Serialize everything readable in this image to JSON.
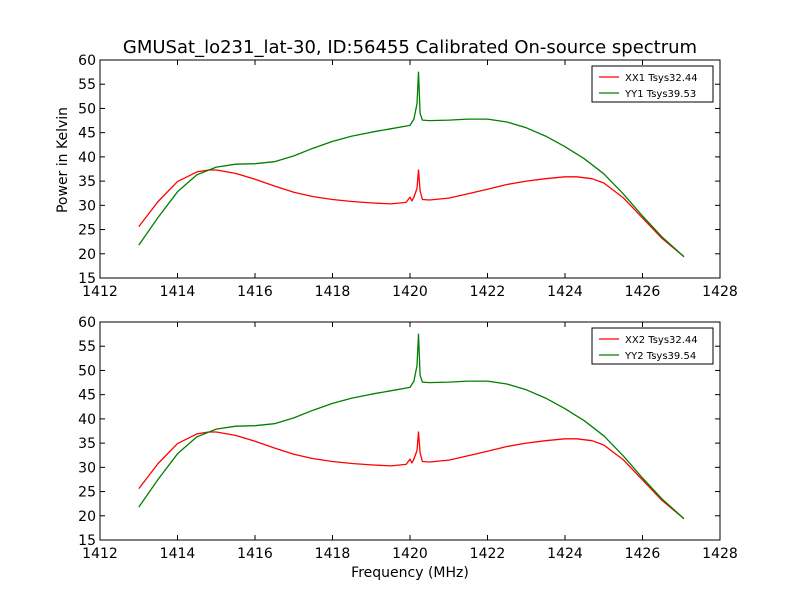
{
  "figure": {
    "title": "GMUSat_lo231_lat-30, ID:56455 Calibrated On-source spectrum",
    "ylabel": "Power in Kelvin",
    "xlabel": "Frequency (MHz)"
  },
  "chart_data": [
    {
      "type": "line",
      "title": "GMUSat_lo231_lat-30, ID:56455 Calibrated On-source spectrum",
      "xlabel": "",
      "ylabel": "Power in Kelvin",
      "xlim": [
        1412,
        1428
      ],
      "ylim": [
        15,
        60
      ],
      "xticks": [
        1412,
        1414,
        1416,
        1418,
        1420,
        1422,
        1424,
        1426,
        1428
      ],
      "yticks": [
        15,
        20,
        25,
        30,
        35,
        40,
        45,
        50,
        55,
        60
      ],
      "grid": false,
      "legend_position": "top-right",
      "series": [
        {
          "name": "XX1 Tsys32.44",
          "color": "#ff0000",
          "x": [
            1413.0,
            1413.5,
            1414.0,
            1414.5,
            1414.8,
            1415.0,
            1415.5,
            1416.0,
            1416.5,
            1417.0,
            1417.5,
            1418.0,
            1418.5,
            1419.0,
            1419.5,
            1419.9,
            1420.0,
            1420.05,
            1420.1,
            1420.18,
            1420.22,
            1420.26,
            1420.32,
            1420.5,
            1421.0,
            1421.5,
            1422.0,
            1422.5,
            1423.0,
            1423.5,
            1424.0,
            1424.3,
            1424.7,
            1425.0,
            1425.5,
            1426.0,
            1426.5,
            1427.07
          ],
          "y": [
            25.6,
            30.8,
            34.9,
            36.9,
            37.3,
            37.3,
            36.6,
            35.4,
            34.0,
            32.7,
            31.8,
            31.2,
            30.8,
            30.5,
            30.3,
            30.6,
            31.7,
            30.9,
            31.7,
            33.5,
            37.3,
            33.0,
            31.2,
            31.1,
            31.5,
            32.4,
            33.3,
            34.3,
            35.0,
            35.5,
            35.9,
            35.9,
            35.5,
            34.6,
            31.6,
            27.4,
            23.2,
            19.4
          ]
        },
        {
          "name": "YY1 Tsys39.53",
          "color": "#008000",
          "x": [
            1413.0,
            1413.5,
            1414.0,
            1414.5,
            1415.0,
            1415.5,
            1416.0,
            1416.5,
            1417.0,
            1417.5,
            1418.0,
            1418.5,
            1419.0,
            1419.5,
            1420.0,
            1420.1,
            1420.18,
            1420.22,
            1420.26,
            1420.32,
            1420.5,
            1421.0,
            1421.5,
            1422.0,
            1422.5,
            1423.0,
            1423.5,
            1424.0,
            1424.5,
            1425.0,
            1425.5,
            1426.0,
            1426.5,
            1427.07
          ],
          "y": [
            21.8,
            27.5,
            32.8,
            36.3,
            37.9,
            38.5,
            38.6,
            39.0,
            40.2,
            41.8,
            43.2,
            44.3,
            45.1,
            45.8,
            46.5,
            47.8,
            51.0,
            57.5,
            49.0,
            47.6,
            47.5,
            47.6,
            47.8,
            47.8,
            47.2,
            46.0,
            44.3,
            42.1,
            39.6,
            36.5,
            32.4,
            27.8,
            23.5,
            19.4
          ]
        }
      ]
    },
    {
      "type": "line",
      "title": "",
      "xlabel": "Frequency (MHz)",
      "ylabel": "",
      "xlim": [
        1412,
        1428
      ],
      "ylim": [
        15,
        60
      ],
      "xticks": [
        1412,
        1414,
        1416,
        1418,
        1420,
        1422,
        1424,
        1426,
        1428
      ],
      "yticks": [
        15,
        20,
        25,
        30,
        35,
        40,
        45,
        50,
        55,
        60
      ],
      "grid": false,
      "legend_position": "top-right",
      "series": [
        {
          "name": "XX2 Tsys32.44",
          "color": "#ff0000",
          "x": [
            1413.0,
            1413.5,
            1414.0,
            1414.5,
            1414.8,
            1415.0,
            1415.5,
            1416.0,
            1416.5,
            1417.0,
            1417.5,
            1418.0,
            1418.5,
            1419.0,
            1419.5,
            1419.9,
            1420.0,
            1420.05,
            1420.1,
            1420.18,
            1420.22,
            1420.26,
            1420.32,
            1420.5,
            1421.0,
            1421.5,
            1422.0,
            1422.5,
            1423.0,
            1423.5,
            1424.0,
            1424.3,
            1424.7,
            1425.0,
            1425.5,
            1426.0,
            1426.5,
            1427.07
          ],
          "y": [
            25.6,
            30.8,
            34.9,
            36.9,
            37.3,
            37.3,
            36.6,
            35.4,
            34.0,
            32.7,
            31.8,
            31.2,
            30.8,
            30.5,
            30.3,
            30.6,
            31.7,
            30.9,
            31.7,
            33.5,
            37.3,
            33.0,
            31.2,
            31.1,
            31.5,
            32.4,
            33.3,
            34.3,
            35.0,
            35.5,
            35.9,
            35.9,
            35.5,
            34.6,
            31.6,
            27.4,
            23.2,
            19.4
          ]
        },
        {
          "name": "YY2 Tsys39.54",
          "color": "#008000",
          "x": [
            1413.0,
            1413.5,
            1414.0,
            1414.5,
            1415.0,
            1415.5,
            1416.0,
            1416.5,
            1417.0,
            1417.5,
            1418.0,
            1418.5,
            1419.0,
            1419.5,
            1420.0,
            1420.1,
            1420.18,
            1420.22,
            1420.26,
            1420.32,
            1420.5,
            1421.0,
            1421.5,
            1422.0,
            1422.5,
            1423.0,
            1423.5,
            1424.0,
            1424.5,
            1425.0,
            1425.5,
            1426.0,
            1426.5,
            1427.07
          ],
          "y": [
            21.8,
            27.5,
            32.8,
            36.3,
            37.9,
            38.5,
            38.6,
            39.0,
            40.2,
            41.8,
            43.2,
            44.3,
            45.1,
            45.8,
            46.5,
            47.8,
            51.0,
            57.5,
            49.0,
            47.6,
            47.5,
            47.6,
            47.8,
            47.8,
            47.2,
            46.0,
            44.3,
            42.1,
            39.6,
            36.5,
            32.4,
            27.8,
            23.5,
            19.4
          ]
        }
      ]
    }
  ]
}
